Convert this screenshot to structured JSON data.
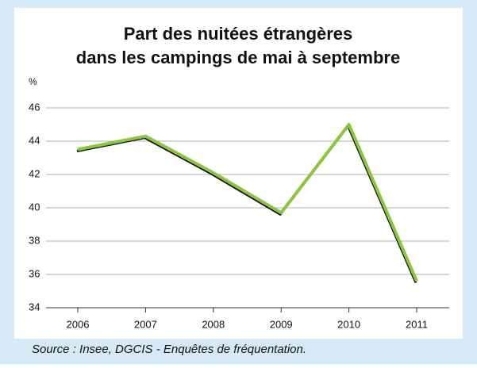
{
  "chart_data": {
    "type": "line",
    "title": [
      "Part des nuitées étrangères",
      "dans les campings de mai à septembre"
    ],
    "y_unit": "%",
    "categories": [
      "2006",
      "2007",
      "2008",
      "2009",
      "2010",
      "2011"
    ],
    "series": [
      {
        "name": "Part des nuitées étrangères",
        "color": "#8cc63f",
        "values": [
          43.5,
          44.3,
          42.1,
          39.7,
          45.0,
          35.6
        ]
      }
    ],
    "ylim": [
      34,
      46
    ],
    "yticks": [
      34,
      36,
      38,
      40,
      42,
      44,
      46
    ],
    "grid": true,
    "source": "Source : Insee, DGCIS - Enquêtes de fréquentation."
  }
}
